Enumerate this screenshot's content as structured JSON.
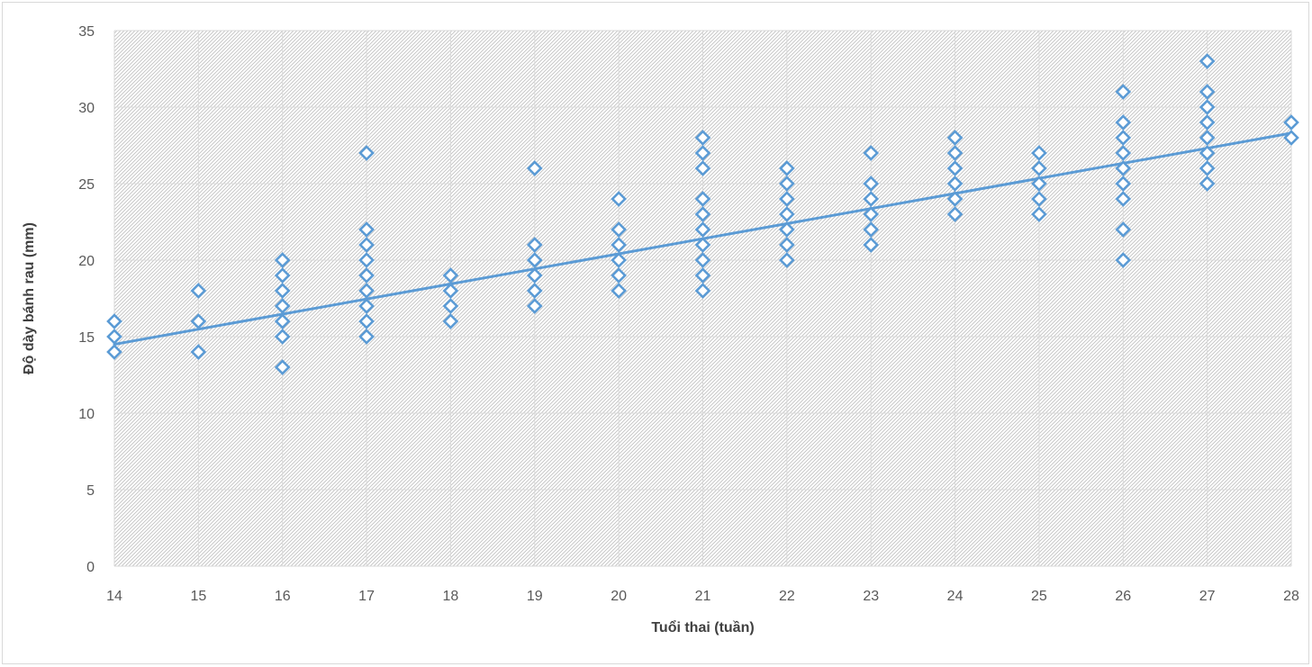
{
  "chart_data": {
    "type": "scatter",
    "title": "",
    "xlabel": "Tuổi thai (tuần)",
    "ylabel": "Độ dày bánh rau (mm)",
    "xlim": [
      14,
      28
    ],
    "ylim": [
      0,
      35
    ],
    "x_ticks": [
      "14",
      "15",
      "16",
      "17",
      "18",
      "19",
      "20",
      "21",
      "22",
      "23",
      "24",
      "25",
      "26",
      "27",
      "28"
    ],
    "y_ticks": [
      "0",
      "5",
      "10",
      "15",
      "20",
      "25",
      "30",
      "35"
    ],
    "grid": true,
    "legend": "none",
    "marker": "diamond",
    "colors": {
      "marker": "#5b9bd5",
      "trendline": "#5b9bd5",
      "grid": "#d9d9d9"
    },
    "series": [
      {
        "points": [
          [
            14,
            16
          ],
          [
            14,
            15
          ],
          [
            14,
            14
          ],
          [
            15,
            18
          ],
          [
            15,
            16
          ],
          [
            15,
            14
          ],
          [
            16,
            20
          ],
          [
            16,
            19
          ],
          [
            16,
            18
          ],
          [
            16,
            17
          ],
          [
            16,
            16
          ],
          [
            16,
            15
          ],
          [
            16,
            13
          ],
          [
            17,
            27
          ],
          [
            17,
            22
          ],
          [
            17,
            21
          ],
          [
            17,
            20
          ],
          [
            17,
            19
          ],
          [
            17,
            18
          ],
          [
            17,
            17
          ],
          [
            17,
            16
          ],
          [
            17,
            15
          ],
          [
            18,
            19
          ],
          [
            18,
            18
          ],
          [
            18,
            17
          ],
          [
            18,
            16
          ],
          [
            19,
            26
          ],
          [
            19,
            21
          ],
          [
            19,
            20
          ],
          [
            19,
            19
          ],
          [
            19,
            18
          ],
          [
            19,
            17
          ],
          [
            20,
            24
          ],
          [
            20,
            22
          ],
          [
            20,
            21
          ],
          [
            20,
            20
          ],
          [
            20,
            19
          ],
          [
            20,
            18
          ],
          [
            21,
            28
          ],
          [
            21,
            27
          ],
          [
            21,
            26
          ],
          [
            21,
            24
          ],
          [
            21,
            23
          ],
          [
            21,
            22
          ],
          [
            21,
            21
          ],
          [
            21,
            20
          ],
          [
            21,
            19
          ],
          [
            21,
            18
          ],
          [
            22,
            26
          ],
          [
            22,
            25
          ],
          [
            22,
            24
          ],
          [
            22,
            23
          ],
          [
            22,
            22
          ],
          [
            22,
            21
          ],
          [
            22,
            20
          ],
          [
            23,
            27
          ],
          [
            23,
            25
          ],
          [
            23,
            24
          ],
          [
            23,
            23
          ],
          [
            23,
            22
          ],
          [
            23,
            21
          ],
          [
            24,
            28
          ],
          [
            24,
            27
          ],
          [
            24,
            26
          ],
          [
            24,
            25
          ],
          [
            24,
            24
          ],
          [
            24,
            23
          ],
          [
            25,
            27
          ],
          [
            25,
            26
          ],
          [
            25,
            25
          ],
          [
            25,
            24
          ],
          [
            25,
            23
          ],
          [
            26,
            31
          ],
          [
            26,
            29
          ],
          [
            26,
            28
          ],
          [
            26,
            27
          ],
          [
            26,
            26
          ],
          [
            26,
            25
          ],
          [
            26,
            24
          ],
          [
            26,
            22
          ],
          [
            26,
            20
          ],
          [
            27,
            33
          ],
          [
            27,
            31
          ],
          [
            27,
            30
          ],
          [
            27,
            29
          ],
          [
            27,
            28
          ],
          [
            27,
            27
          ],
          [
            27,
            26
          ],
          [
            27,
            25
          ],
          [
            28,
            29
          ],
          [
            28,
            28
          ]
        ]
      }
    ],
    "trendline": {
      "type": "linear",
      "start": [
        14,
        14.5
      ],
      "end": [
        28,
        28.3
      ]
    }
  }
}
